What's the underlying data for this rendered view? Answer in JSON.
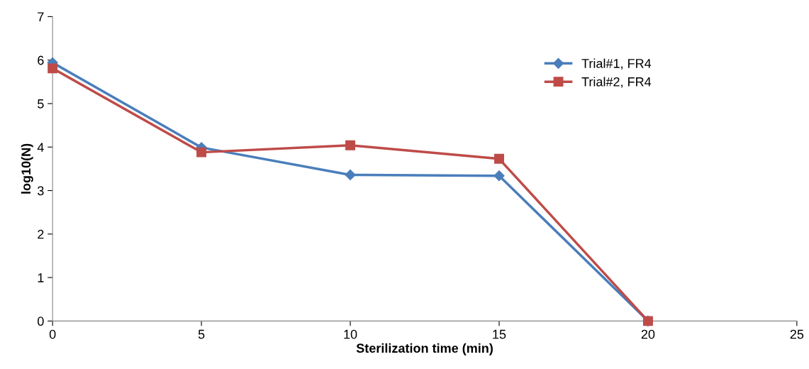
{
  "chart_data": {
    "type": "line",
    "xlabel": "Sterilization time (min)",
    "ylabel": "log10(N)",
    "x": [
      0,
      5,
      10,
      15,
      20
    ],
    "series": [
      {
        "name": "Trial#1, FR4",
        "color": "#4a7ebb",
        "marker": "diamond",
        "values": [
          5.94,
          3.99,
          3.36,
          3.34,
          0
        ]
      },
      {
        "name": "Trial#2, FR4",
        "color": "#be4b48",
        "marker": "square",
        "values": [
          5.81,
          3.88,
          4.04,
          3.73,
          0
        ]
      }
    ],
    "xlim": [
      0,
      25
    ],
    "xticks": [
      0,
      5,
      10,
      15,
      20,
      25
    ],
    "ylim": [
      0,
      7
    ],
    "yticks": [
      0,
      1,
      2,
      3,
      4,
      5,
      6,
      7
    ],
    "grid": false,
    "legend": "top right",
    "line_style": "solid"
  }
}
